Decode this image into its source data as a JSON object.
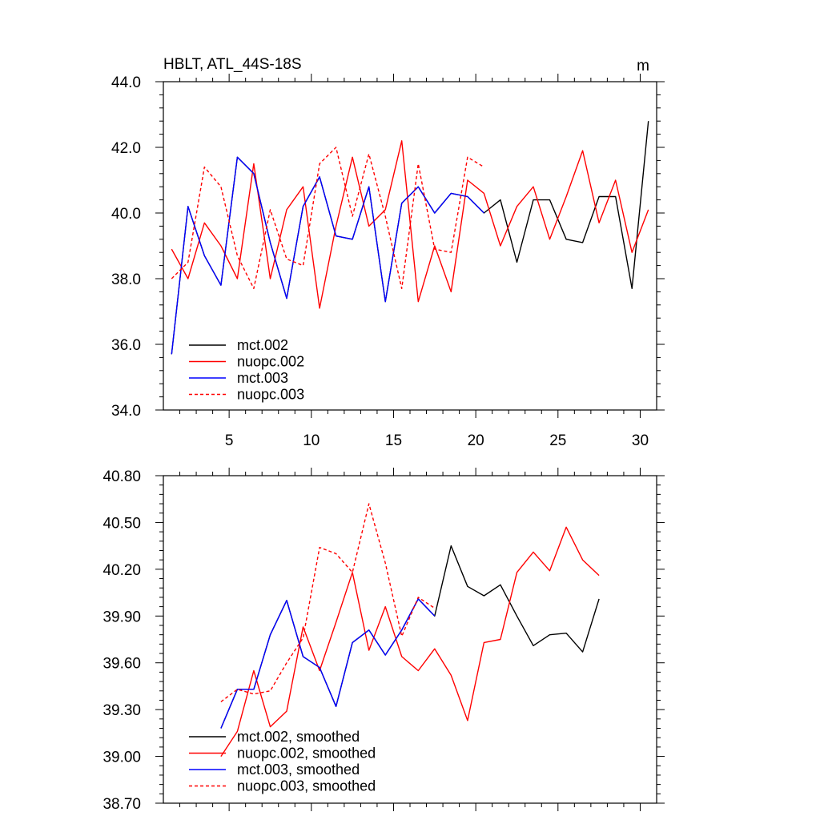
{
  "figure": {
    "title": "HBLT, ATL_44S-18S",
    "units": "m"
  },
  "chart_data": [
    {
      "type": "line",
      "title": "HBLT, ATL_44S-18S",
      "units_label": "m",
      "xlabel": "",
      "ylabel": "",
      "xlim": [
        1,
        31
      ],
      "ylim": [
        34.0,
        44.0
      ],
      "x_ticks": [
        5,
        10,
        15,
        20,
        25,
        30
      ],
      "x_tick_labels": [
        "5",
        "10",
        "15",
        "20",
        "25",
        "30"
      ],
      "y_ticks": [
        34.0,
        36.0,
        38.0,
        40.0,
        42.0,
        44.0
      ],
      "y_tick_labels": [
        "34.0",
        "36.0",
        "38.0",
        "40.0",
        "42.0",
        "44.0"
      ],
      "legend_position": "bottom-left",
      "series": [
        {
          "name": "mct.002",
          "color": "#000000",
          "dash": "solid",
          "x": [
            1.5,
            2.5,
            3.5,
            4.5,
            5.5,
            6.5,
            7.5,
            8.5,
            9.5,
            10.5,
            11.5,
            12.5,
            13.5,
            14.5,
            15.5,
            16.5,
            17.5,
            18.5,
            19.5,
            20.5,
            21.5,
            22.5,
            23.5,
            24.5,
            25.5,
            26.5,
            27.5,
            28.5,
            29.5,
            30.5
          ],
          "values": [
            35.7,
            40.2,
            38.7,
            37.8,
            41.7,
            41.2,
            39.1,
            37.4,
            40.2,
            41.1,
            39.3,
            39.2,
            40.8,
            37.3,
            40.3,
            40.8,
            40.0,
            40.6,
            40.5,
            40.0,
            40.4,
            38.5,
            40.4,
            40.4,
            39.2,
            39.1,
            40.5,
            40.5,
            37.7,
            42.8
          ]
        },
        {
          "name": "nuopc.002",
          "color": "#ff0000",
          "dash": "solid",
          "x": [
            1.5,
            2.5,
            3.5,
            4.5,
            5.5,
            6.5,
            7.5,
            8.5,
            9.5,
            10.5,
            11.5,
            12.5,
            13.5,
            14.5,
            15.5,
            16.5,
            17.5,
            18.5,
            19.5,
            20.5,
            21.5,
            22.5,
            23.5,
            24.5,
            25.5,
            26.5,
            27.5,
            28.5,
            29.5,
            30.5
          ],
          "values": [
            38.9,
            38.0,
            39.7,
            39.0,
            38.0,
            41.5,
            38.0,
            40.1,
            40.8,
            37.1,
            39.6,
            41.7,
            39.6,
            40.1,
            42.2,
            37.3,
            39.0,
            37.6,
            41.0,
            40.6,
            39.0,
            40.2,
            40.8,
            39.2,
            40.5,
            41.9,
            39.7,
            41.0,
            38.8,
            40.1
          ]
        },
        {
          "name": "mct.003",
          "color": "#0000ff",
          "dash": "solid",
          "x": [
            1.5,
            2.5,
            3.5,
            4.5,
            5.5,
            6.5,
            7.5,
            8.5,
            9.5,
            10.5,
            11.5,
            12.5,
            13.5,
            14.5,
            15.5,
            16.5,
            17.5,
            18.5,
            19.5,
            20.5
          ],
          "values": [
            35.7,
            40.2,
            38.7,
            37.8,
            41.7,
            41.2,
            39.1,
            37.4,
            40.2,
            41.1,
            39.3,
            39.2,
            40.8,
            37.3,
            40.3,
            40.8,
            40.0,
            40.6,
            40.5,
            40.0
          ]
        },
        {
          "name": "nuopc.003",
          "color": "#ff0000",
          "dash": "dashed",
          "x": [
            1.5,
            2.5,
            3.5,
            4.5,
            5.5,
            6.5,
            7.5,
            8.5,
            9.5,
            10.5,
            11.5,
            12.5,
            13.5,
            14.5,
            15.5,
            16.5,
            17.5,
            18.5,
            19.5,
            20.5
          ],
          "values": [
            38.0,
            38.5,
            41.4,
            40.8,
            38.7,
            37.7,
            40.1,
            38.6,
            38.4,
            41.5,
            42.0,
            39.9,
            41.8,
            39.9,
            37.7,
            41.5,
            38.9,
            38.8,
            41.7,
            41.4
          ]
        }
      ]
    },
    {
      "type": "line",
      "title": "",
      "xlabel": "",
      "ylabel": "",
      "xlim": [
        1,
        31
      ],
      "ylim": [
        38.7,
        40.8
      ],
      "x_ticks": [
        5,
        10,
        15,
        20,
        25,
        30
      ],
      "x_tick_labels": [],
      "y_ticks": [
        38.7,
        39.0,
        39.3,
        39.6,
        39.9,
        40.2,
        40.5,
        40.8
      ],
      "y_tick_labels": [
        "38.70",
        "39.00",
        "39.30",
        "39.60",
        "39.90",
        "40.20",
        "40.50",
        "40.80"
      ],
      "legend_position": "bottom-left",
      "series": [
        {
          "name": "mct.002, smoothed",
          "color": "#000000",
          "dash": "solid",
          "x": [
            4.5,
            5.5,
            6.5,
            7.5,
            8.5,
            9.5,
            10.5,
            11.5,
            12.5,
            13.5,
            14.5,
            15.5,
            16.5,
            17.5,
            18.5,
            19.5,
            20.5,
            21.5,
            22.5,
            23.5,
            24.5,
            25.5,
            26.5,
            27.5
          ],
          "values": [
            39.18,
            39.43,
            39.43,
            39.78,
            40.0,
            39.64,
            39.57,
            39.32,
            39.73,
            39.81,
            39.65,
            39.81,
            40.01,
            39.9,
            40.35,
            40.09,
            40.03,
            40.1,
            39.9,
            39.71,
            39.78,
            39.79,
            39.67,
            40.01
          ]
        },
        {
          "name": "nuopc.002, smoothed",
          "color": "#ff0000",
          "dash": "solid",
          "x": [
            4.5,
            5.5,
            6.5,
            7.5,
            8.5,
            9.5,
            10.5,
            11.5,
            12.5,
            13.5,
            14.5,
            15.5,
            16.5,
            17.5,
            18.5,
            19.5,
            20.5,
            21.5,
            22.5,
            23.5,
            24.5,
            25.5,
            26.5,
            27.5
          ],
          "values": [
            39.0,
            39.16,
            39.55,
            39.19,
            39.29,
            39.83,
            39.55,
            39.86,
            40.18,
            39.68,
            39.96,
            39.64,
            39.55,
            39.69,
            39.52,
            39.23,
            39.73,
            39.75,
            40.18,
            40.31,
            40.19,
            40.47,
            40.26,
            40.16
          ]
        },
        {
          "name": "mct.003, smoothed",
          "color": "#0000ff",
          "dash": "solid",
          "x": [
            4.5,
            5.5,
            6.5,
            7.5,
            8.5,
            9.5,
            10.5,
            11.5,
            12.5,
            13.5,
            14.5,
            15.5,
            16.5,
            17.5
          ],
          "values": [
            39.18,
            39.43,
            39.43,
            39.78,
            40.0,
            39.64,
            39.57,
            39.32,
            39.73,
            39.81,
            39.65,
            39.81,
            40.01,
            39.9
          ]
        },
        {
          "name": "nuopc.003, smoothed",
          "color": "#ff0000",
          "dash": "dashed",
          "x": [
            4.5,
            5.5,
            6.5,
            7.5,
            8.5,
            9.5,
            10.5,
            11.5,
            12.5,
            13.5,
            14.5,
            15.5,
            16.5,
            17.5
          ],
          "values": [
            39.35,
            39.43,
            39.4,
            39.42,
            39.6,
            39.76,
            40.34,
            40.3,
            40.18,
            40.62,
            40.24,
            39.77,
            40.02,
            39.95
          ]
        }
      ]
    }
  ]
}
